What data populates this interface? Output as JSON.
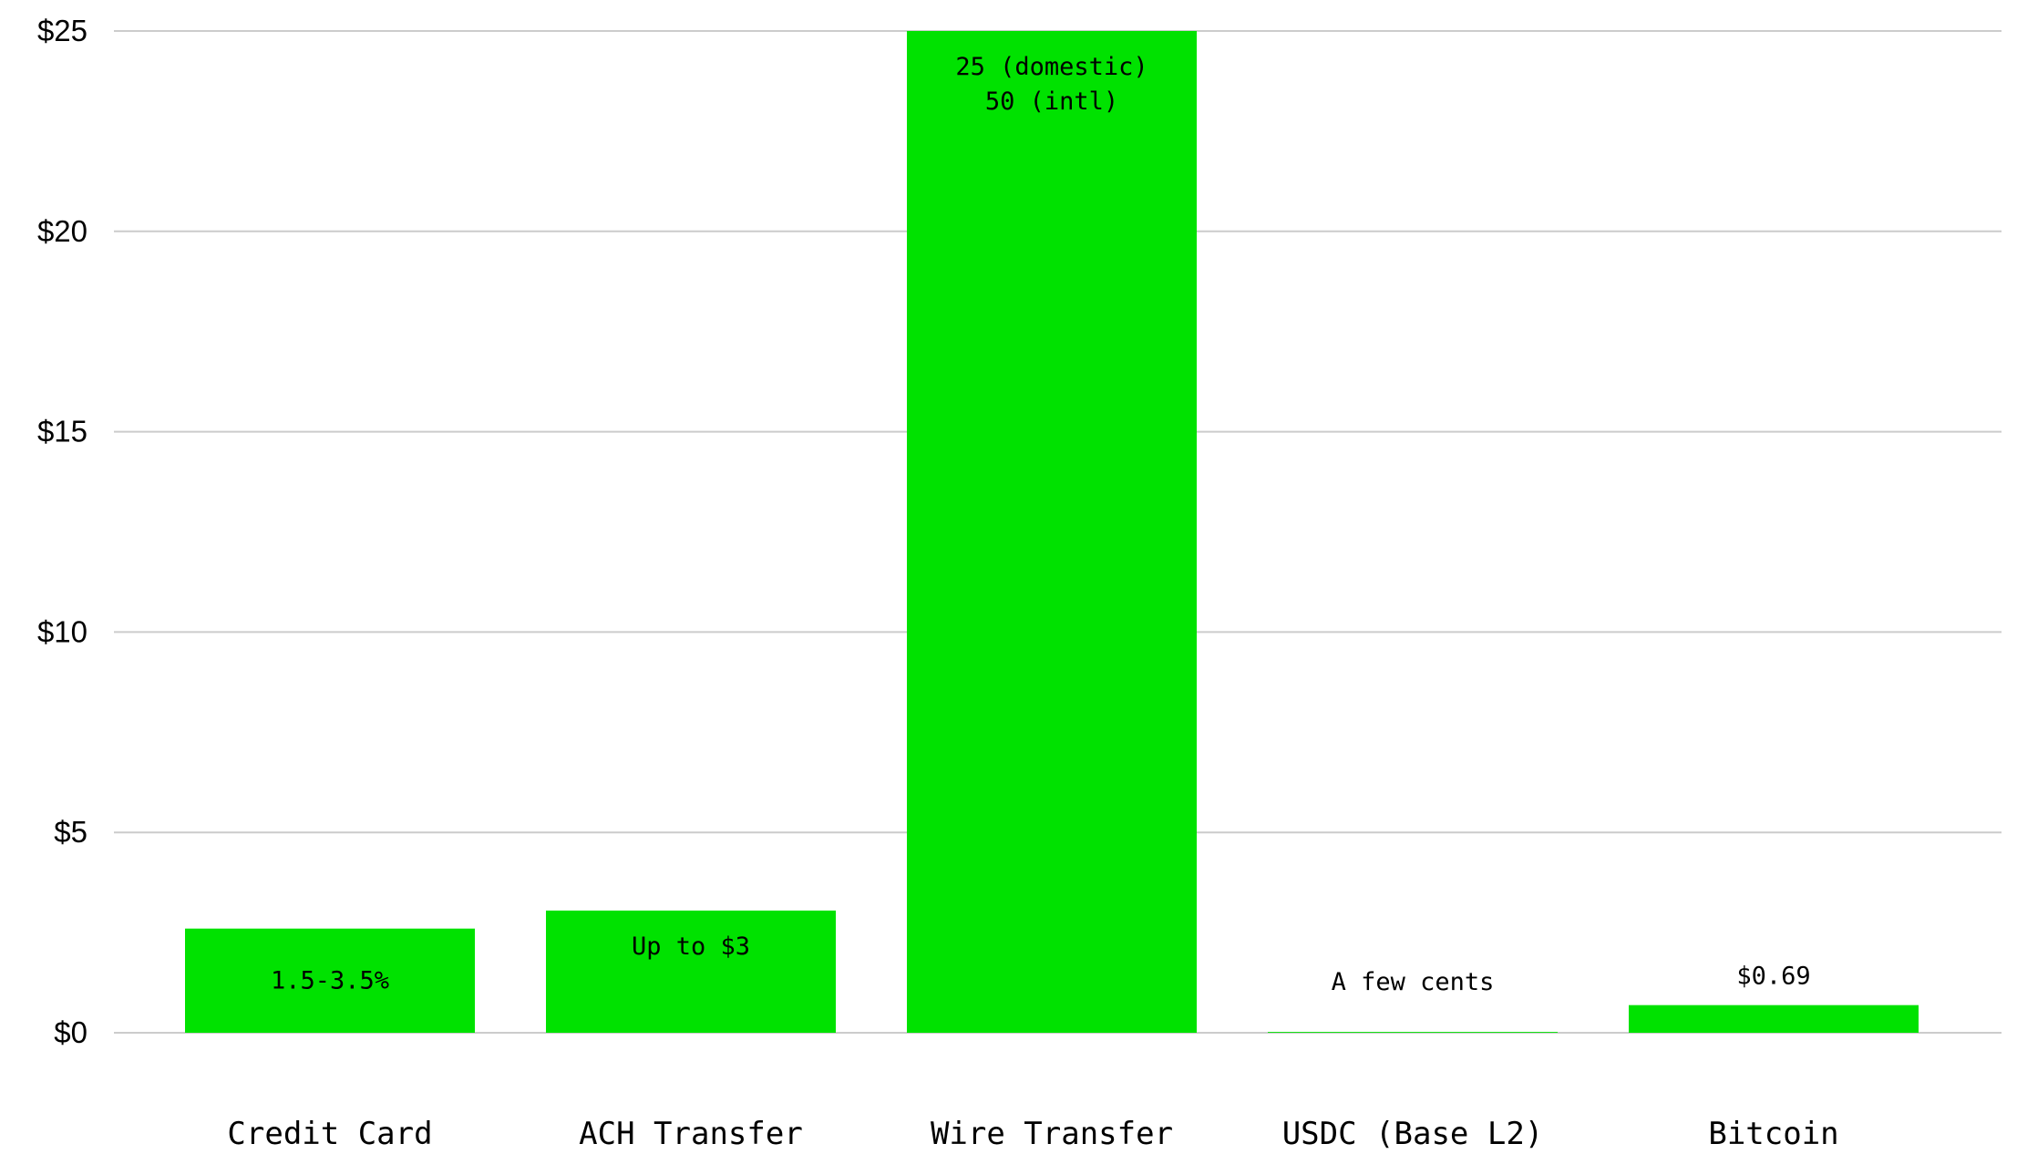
{
  "chart_data": {
    "type": "bar",
    "categories": [
      "Credit Card",
      "ACH Transfer",
      "Wire Transfer",
      "USDC (Base L2)",
      "Bitcoin"
    ],
    "values": [
      2.6,
      3.05,
      25,
      0.02,
      0.69
    ],
    "data_labels": [
      [
        "1.5-3.5%"
      ],
      [
        "Up to $3"
      ],
      [
        "25 (domestic)",
        "50 (intl)"
      ],
      [
        "A few cents"
      ],
      [
        "$0.69"
      ]
    ],
    "ylim": [
      0,
      25
    ],
    "yticks": [
      0,
      5,
      10,
      15,
      20,
      25
    ],
    "ytick_labels": [
      "$0",
      "$5",
      "$10",
      "$15",
      "$20",
      "$25"
    ],
    "grid": true,
    "title": "",
    "xlabel": "",
    "ylabel": "",
    "colors": {
      "bar": "#00e200",
      "grid": "#cccccc",
      "text": "#000000",
      "background": "#ffffff"
    }
  }
}
